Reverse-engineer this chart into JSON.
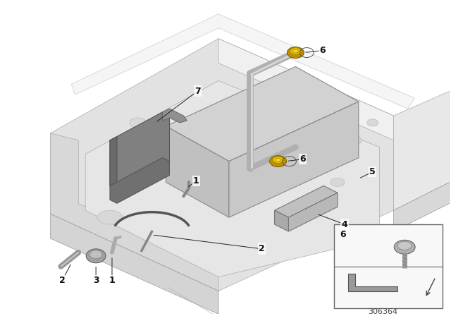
{
  "bg_color": "#ffffff",
  "diagram_number": "306364",
  "floor_top_color": "#e8e8e8",
  "floor_side_color": "#d8d8d8",
  "wall_color": "#ebebeb",
  "battery_top_color": "#d0d0d0",
  "battery_front_color": "#c0c0c0",
  "battery_side_color": "#b8b8b8",
  "holder_dark": "#6a6a6a",
  "holder_mid": "#888888",
  "strap_color": "#b0b0b0",
  "clamp_color": "#aaaaaa",
  "label_fontsize": 9,
  "yellow": "#d4a800",
  "yellow_light": "#f0cc00",
  "line_color": "#222222"
}
